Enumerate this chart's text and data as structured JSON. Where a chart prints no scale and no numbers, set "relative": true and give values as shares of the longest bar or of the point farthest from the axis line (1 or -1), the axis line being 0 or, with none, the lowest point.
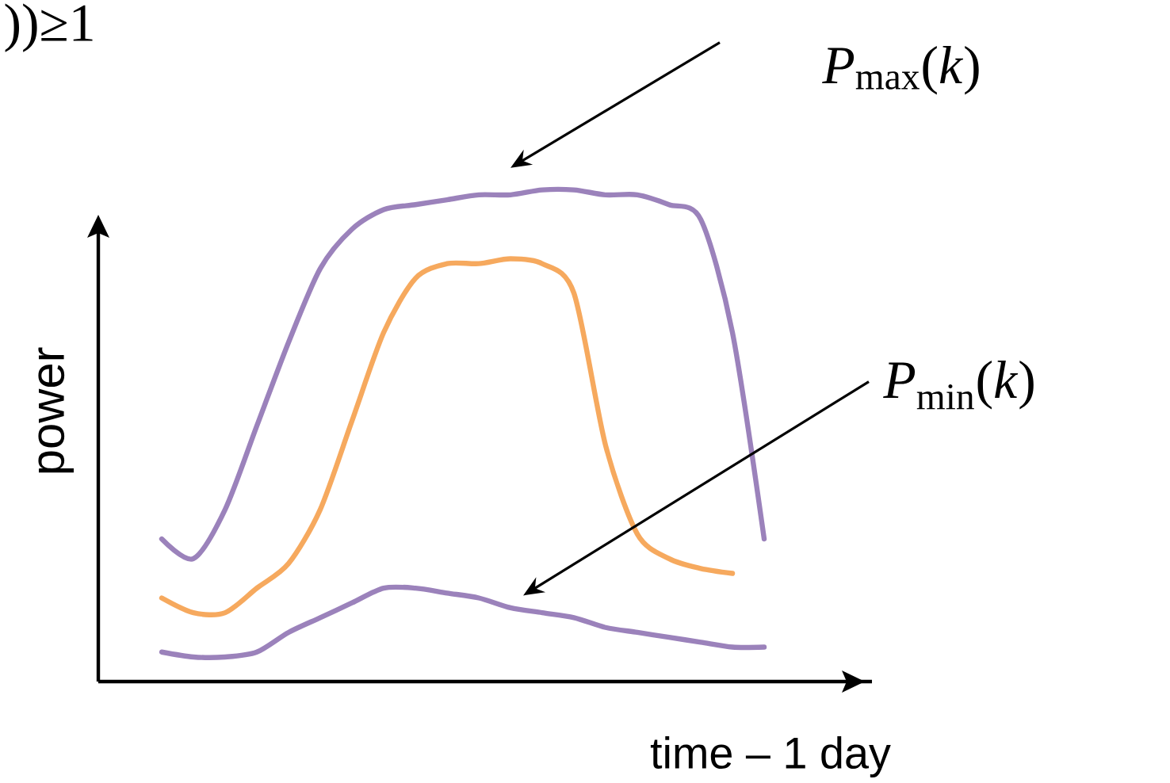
{
  "chart_data": {
    "type": "line",
    "relative": true,
    "xlabel": "time – 1 day",
    "ylabel": "power",
    "annotations": [
      "))≥1"
    ],
    "legend": false,
    "categories": [
      null,
      null,
      null,
      null,
      null,
      null,
      null,
      null,
      null,
      null,
      null,
      null,
      null,
      null,
      null,
      null,
      null,
      null,
      null,
      null,
      null,
      null,
      null,
      null,
      null
    ],
    "series": [
      {
        "name": "*P*$_{max}$(*k*)",
        "color": "#9b82bb",
        "values": [
          null,
          null,
          0.29,
          0.25,
          0.35,
          0.52,
          0.69,
          0.84,
          0.92,
          0.96,
          0.97,
          0.98,
          0.99,
          0.99,
          1.0,
          1.0,
          0.99,
          0.99,
          0.97,
          0.94,
          0.71,
          0.29,
          null,
          null,
          null
        ]
      },
      {
        "color": "#f6a95e",
        "values": [
          null,
          null,
          0.17,
          0.14,
          0.14,
          0.19,
          0.24,
          0.35,
          0.53,
          0.71,
          0.82,
          0.85,
          0.85,
          0.86,
          0.85,
          0.79,
          0.48,
          0.3,
          0.25,
          0.23,
          0.22,
          null,
          null,
          null,
          null
        ]
      },
      {
        "name": "*P*$_{min}$(*k*)",
        "color": "#9b82bb",
        "values": [
          null,
          null,
          0.06,
          0.05,
          0.05,
          0.06,
          0.1,
          0.13,
          0.16,
          0.19,
          0.19,
          0.18,
          0.17,
          0.15,
          0.14,
          0.13,
          0.11,
          0.1,
          0.09,
          0.08,
          0.07,
          0.07,
          null,
          null,
          null
        ]
      }
    ]
  }
}
